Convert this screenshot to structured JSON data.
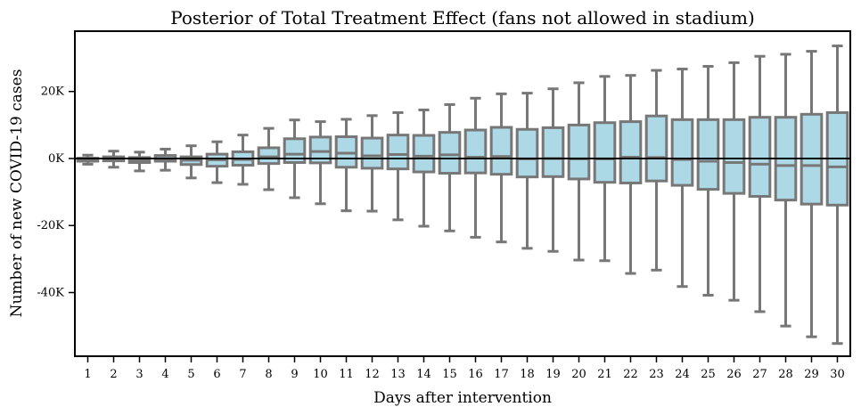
{
  "chart_data": {
    "type": "boxplot",
    "title": "Posterior of Total Treatment Effect (fans not allowed in stadium)",
    "xlabel": "Days after intervention",
    "ylabel": "Number of new COVID-19 cases",
    "ylim": [
      -59000,
      38000
    ],
    "yticks": [
      20000,
      0,
      -20000,
      -40000
    ],
    "ytick_labels": [
      "20K",
      "0K",
      "-20K",
      "-40K"
    ],
    "grid": false,
    "reference_line": 0,
    "colors": {
      "box_fill": "#add8e6",
      "box_edge": "#777777",
      "axis": "#000000",
      "reference_line": "#000000"
    },
    "categories": [
      "1",
      "2",
      "3",
      "4",
      "5",
      "6",
      "7",
      "8",
      "9",
      "10",
      "11",
      "12",
      "13",
      "14",
      "15",
      "16",
      "17",
      "18",
      "19",
      "20",
      "21",
      "22",
      "23",
      "24",
      "25",
      "26",
      "27",
      "28",
      "29",
      "30"
    ],
    "boxes": [
      {
        "day": "1",
        "whisker_high": 1000,
        "q3": 100,
        "median": -300,
        "q1": -800,
        "whisker_low": -1700
      },
      {
        "day": "2",
        "whisker_high": 2200,
        "q3": 500,
        "median": -100,
        "q1": -700,
        "whisker_low": -2600
      },
      {
        "day": "3",
        "whisker_high": 1900,
        "q3": 300,
        "median": -400,
        "q1": -1200,
        "whisker_low": -3700
      },
      {
        "day": "4",
        "whisker_high": 2800,
        "q3": 900,
        "median": 0,
        "q1": -800,
        "whisker_low": -3500
      },
      {
        "day": "5",
        "whisker_high": 3800,
        "q3": 500,
        "median": -500,
        "q1": -1800,
        "whisker_low": -5800
      },
      {
        "day": "6",
        "whisker_high": 5000,
        "q3": 1300,
        "median": -400,
        "q1": -2300,
        "whisker_low": -7200
      },
      {
        "day": "7",
        "whisker_high": 7000,
        "q3": 2000,
        "median": -300,
        "q1": -2000,
        "whisker_low": -7700
      },
      {
        "day": "8",
        "whisker_high": 9000,
        "q3": 3200,
        "median": 500,
        "q1": -1500,
        "whisker_low": -9300
      },
      {
        "day": "9",
        "whisker_high": 11500,
        "q3": 5900,
        "median": 1300,
        "q1": -1200,
        "whisker_low": -11700
      },
      {
        "day": "10",
        "whisker_high": 11000,
        "q3": 6400,
        "median": 2100,
        "q1": -1300,
        "whisker_low": -13500
      },
      {
        "day": "11",
        "whisker_high": 11700,
        "q3": 6500,
        "median": 1600,
        "q1": -2600,
        "whisker_low": -15600
      },
      {
        "day": "12",
        "whisker_high": 12800,
        "q3": 6100,
        "median": 800,
        "q1": -2900,
        "whisker_low": -15700
      },
      {
        "day": "13",
        "whisker_high": 13700,
        "q3": 7000,
        "median": 1200,
        "q1": -3100,
        "whisker_low": -18300
      },
      {
        "day": "14",
        "whisker_high": 14500,
        "q3": 6900,
        "median": 700,
        "q1": -4000,
        "whisker_low": -20200
      },
      {
        "day": "15",
        "whisker_high": 16100,
        "q3": 7800,
        "median": 1100,
        "q1": -4400,
        "whisker_low": -21600
      },
      {
        "day": "16",
        "whisker_high": 18000,
        "q3": 8500,
        "median": 400,
        "q1": -4300,
        "whisker_low": -23500
      },
      {
        "day": "17",
        "whisker_high": 19300,
        "q3": 9300,
        "median": 600,
        "q1": -4700,
        "whisker_low": -24900
      },
      {
        "day": "18",
        "whisker_high": 19500,
        "q3": 8700,
        "median": -100,
        "q1": -5500,
        "whisker_low": -26800
      },
      {
        "day": "19",
        "whisker_high": 20800,
        "q3": 9200,
        "median": 0,
        "q1": -5400,
        "whisker_low": -27700
      },
      {
        "day": "20",
        "whisker_high": 22600,
        "q3": 10000,
        "median": -100,
        "q1": -6100,
        "whisker_low": -30300
      },
      {
        "day": "21",
        "whisker_high": 24500,
        "q3": 10700,
        "median": -100,
        "q1": -7100,
        "whisker_low": -30500
      },
      {
        "day": "22",
        "whisker_high": 24800,
        "q3": 11000,
        "median": 400,
        "q1": -7300,
        "whisker_low": -34300
      },
      {
        "day": "23",
        "whisker_high": 26300,
        "q3": 12700,
        "median": 300,
        "q1": -6700,
        "whisker_low": -33300
      },
      {
        "day": "24",
        "whisker_high": 26700,
        "q3": 11600,
        "median": -300,
        "q1": -8000,
        "whisker_low": -38200
      },
      {
        "day": "25",
        "whisker_high": 27500,
        "q3": 11600,
        "median": -800,
        "q1": -9200,
        "whisker_low": -40800
      },
      {
        "day": "26",
        "whisker_high": 28600,
        "q3": 11600,
        "median": -1200,
        "q1": -10400,
        "whisker_low": -42300
      },
      {
        "day": "27",
        "whisker_high": 30500,
        "q3": 12300,
        "median": -1700,
        "q1": -11300,
        "whisker_low": -45700
      },
      {
        "day": "28",
        "whisker_high": 31100,
        "q3": 12300,
        "median": -2100,
        "q1": -12400,
        "whisker_low": -50000
      },
      {
        "day": "29",
        "whisker_high": 32000,
        "q3": 13200,
        "median": -2100,
        "q1": -13600,
        "whisker_low": -53200
      },
      {
        "day": "30",
        "whisker_high": 33600,
        "q3": 13700,
        "median": -2500,
        "q1": -13900,
        "whisker_low": -55200
      }
    ]
  }
}
